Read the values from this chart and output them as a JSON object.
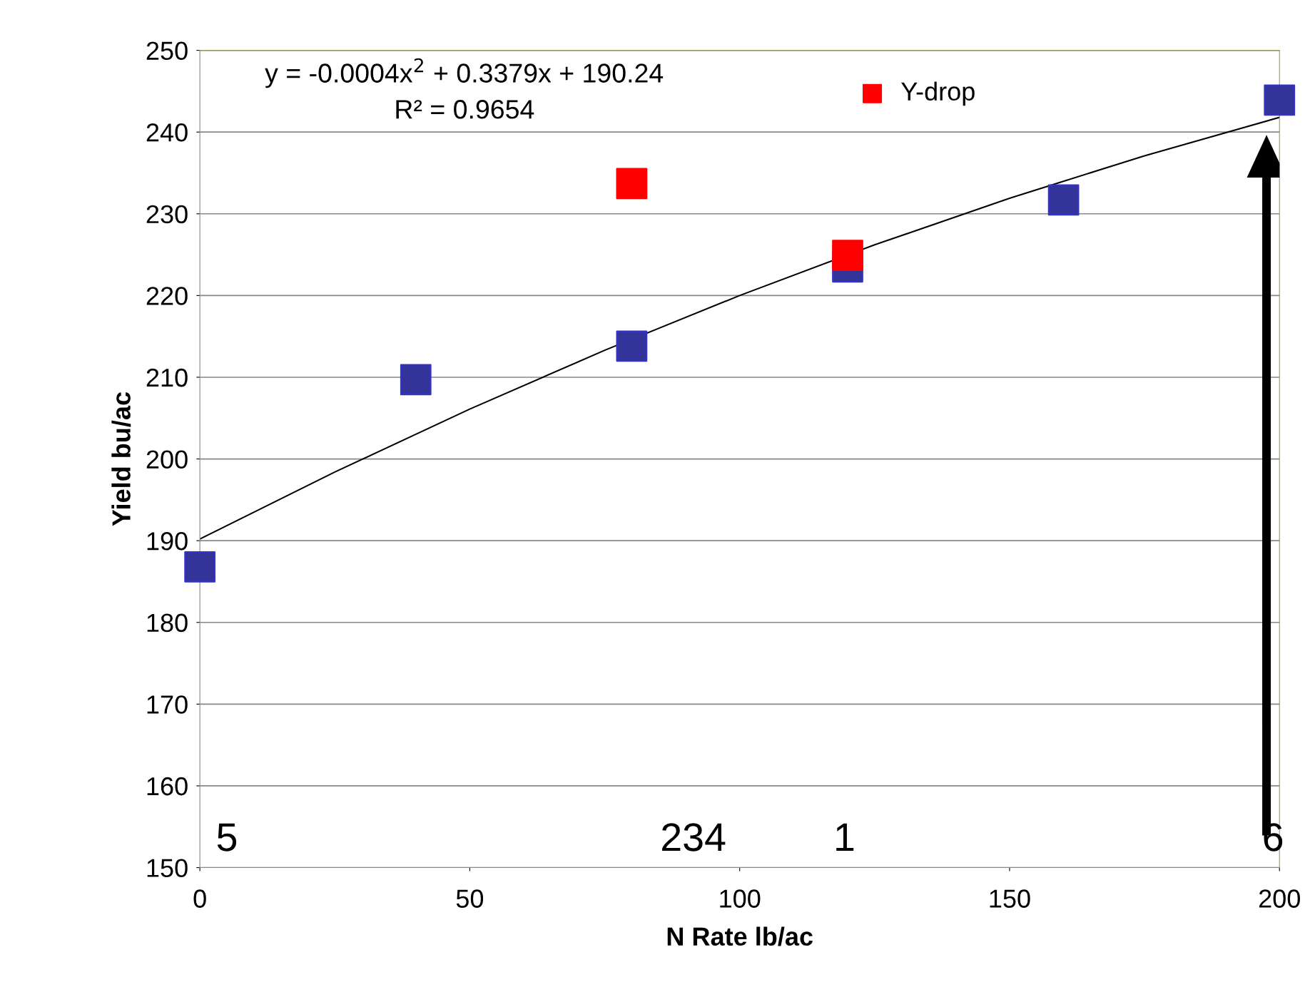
{
  "chart_data": {
    "type": "scatter",
    "xlabel": "N Rate lb/ac",
    "ylabel": "Yield bu/ac",
    "xlim": [
      0,
      200
    ],
    "xticks": [
      0,
      50,
      100,
      150,
      200
    ],
    "ylim": [
      150,
      250
    ],
    "yticks": [
      150,
      160,
      170,
      180,
      190,
      200,
      210,
      220,
      230,
      240,
      250
    ],
    "grid": "y",
    "legend": "top right",
    "marker": "square",
    "series": [
      {
        "type": "line",
        "marker": "none",
        "color": "#000000",
        "x": [
          0,
          25,
          50,
          75,
          100,
          125,
          150,
          175,
          200
        ],
        "values": [
          190.2,
          198.4,
          206.1,
          213.3,
          220.0,
          226.2,
          231.9,
          237.1,
          241.8
        ]
      },
      {
        "color": "#333399",
        "x": [
          0,
          40,
          80,
          120,
          160,
          200
        ],
        "values": [
          186.8,
          209.7,
          213.8,
          223.5,
          231.7,
          243.9
        ]
      },
      {
        "name": "Y-drop",
        "color": "#ff0000",
        "x": [
          80,
          120
        ],
        "values": [
          233.7,
          224.9
        ]
      }
    ],
    "annotations": [
      "y = -0.0004x$^{2}$ + 0.3379x + 190.24",
      "R² = 0.9654",
      "5",
      "234",
      "1",
      "6"
    ]
  }
}
